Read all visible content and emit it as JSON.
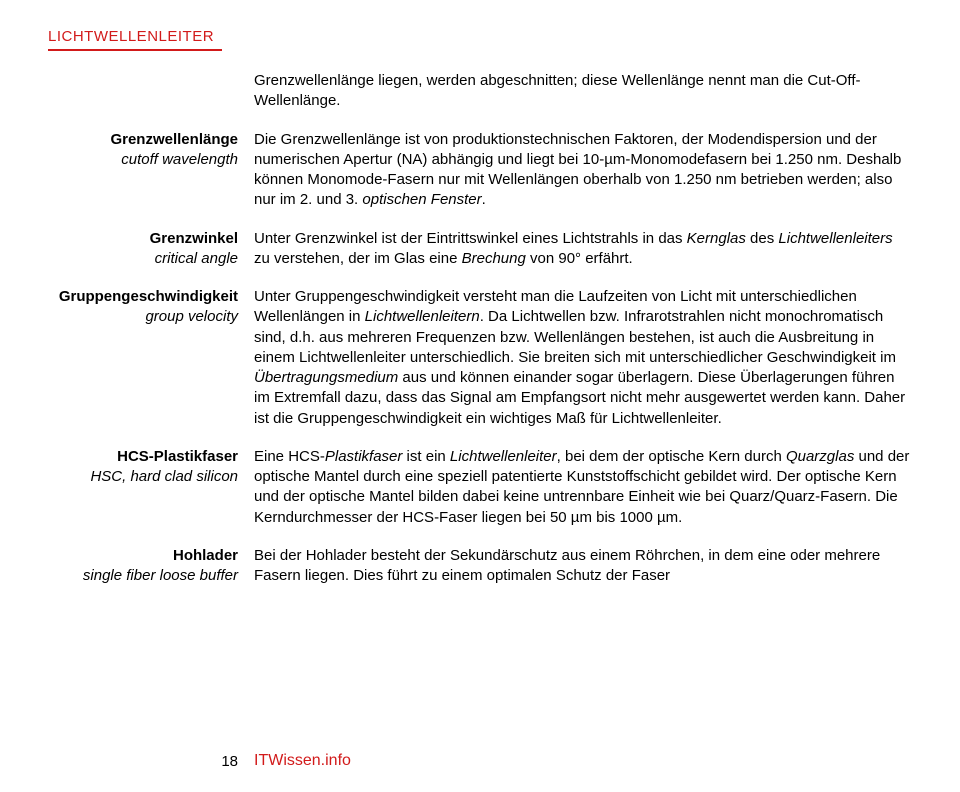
{
  "header": "LICHTWELLENLEITER",
  "intro": "Grenzwellenlänge liegen, werden abgeschnitten; diese Wellenlänge nennt man die Cut-Off-Wellenlänge.",
  "entries": [
    {
      "term": "Grenzwellenlänge",
      "subterm": "cutoff wavelength",
      "text": "Die Grenzwellenlänge ist von produktionstechnischen Faktoren, der Modendispersion und der numerischen Apertur (NA) abhängig und liegt bei 10-µm-Monomodefasern bei 1.250 nm. Deshalb können Monomode-Fasern nur mit Wellenlängen oberhalb von 1.250 nm betrieben werden; also nur im 2. und 3. <span class=\"ital\">optischen Fenster</span>."
    },
    {
      "term": "Grenzwinkel",
      "subterm": "critical angle",
      "text": "Unter Grenzwinkel ist der Eintrittswinkel eines Lichtstrahls in das <span class=\"ital\">Kernglas</span> des <span class=\"ital\">Lichtwellenleiters</span> zu verstehen, der im Glas eine <span class=\"ital\">Brechung</span> von 90° erfährt."
    },
    {
      "term": "Gruppengeschwindigkeit",
      "subterm": "group velocity",
      "text": "Unter Gruppengeschwindigkeit versteht man die Laufzeiten von Licht mit unterschiedlichen Wellenlängen in <span class=\"ital\">Lichtwellenleitern</span>. Da Lichtwellen bzw. Infrarotstrahlen nicht monochromatisch sind, d.h. aus mehreren Frequenzen bzw. Wellenlängen bestehen, ist auch die Ausbreitung in einem Lichtwellenleiter unterschiedlich. Sie breiten sich mit unterschiedlicher Geschwindigkeit im <span class=\"ital\">Übertragungsmedium</span> aus und können einander sogar überlagern. Diese Überlagerungen führen im Extremfall dazu, dass das Signal am Empfangsort nicht mehr ausgewertet werden kann. Daher ist die Gruppengeschwindigkeit ein wichtiges Maß für Lichtwellenleiter."
    },
    {
      "term": "HCS-Plastikfaser",
      "subterm": "HSC, hard clad silicon",
      "text": "Eine HCS-<span class=\"ital\">Plastikfaser</span> ist ein <span class=\"ital\">Lichtwellenleiter</span>, bei dem der optische Kern durch <span class=\"ital\">Quarzglas</span> und der optische Mantel durch eine speziell patentierte Kunststoffschicht gebildet wird. Der optische Kern und der optische Mantel bilden dabei keine untrennbare Einheit wie bei Quarz/Quarz-Fasern. Die Kerndurchmesser der HCS-Faser liegen bei 50 µm bis 1000 µm."
    },
    {
      "term": "Hohlader",
      "subterm": "single fiber loose buffer",
      "text": "Bei der Hohlader besteht der Sekundärschutz aus einem Röhrchen, in dem eine oder mehrere Fasern liegen. Dies führt zu einem optimalen Schutz der Faser"
    }
  ],
  "pageNumber": "18",
  "site": "ITWissen.info"
}
